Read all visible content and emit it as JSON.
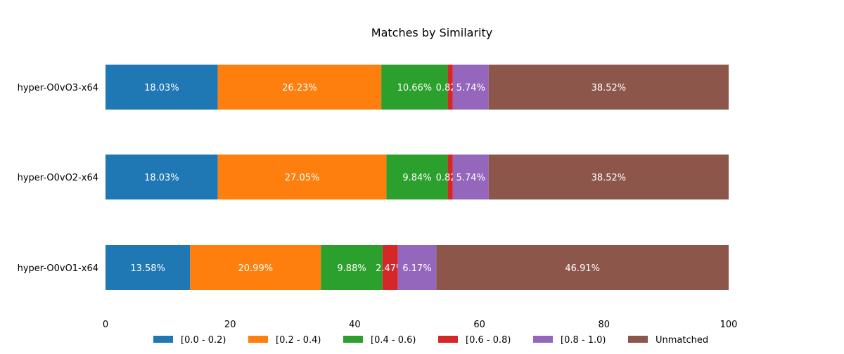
{
  "chart_data": {
    "type": "bar",
    "orientation": "horizontal",
    "stacked": true,
    "title": "Matches by Similarity",
    "xlabel": "",
    "ylabel": "",
    "xlim": [
      0,
      100
    ],
    "x_ticks": [
      0,
      20,
      40,
      60,
      80,
      100
    ],
    "grid": false,
    "legend_position": "bottom",
    "categories": [
      "hyper-O0vO1-x64",
      "hyper-O0vO2-x64",
      "hyper-O0vO3-x64"
    ],
    "series": [
      {
        "name": "[0.0 - 0.2)",
        "color": "#1f77b4",
        "values": [
          13.58,
          18.03,
          18.03
        ],
        "labels": [
          "13.58%",
          "18.03%",
          "18.03%"
        ]
      },
      {
        "name": "[0.2 - 0.4)",
        "color": "#ff7f0e",
        "values": [
          20.99,
          27.05,
          26.23
        ],
        "labels": [
          "20.99%",
          "27.05%",
          "26.23%"
        ]
      },
      {
        "name": "[0.4 - 0.6)",
        "color": "#2ca02c",
        "values": [
          9.88,
          9.84,
          10.66
        ],
        "labels": [
          "9.88%",
          "9.84%",
          "10.66%"
        ]
      },
      {
        "name": "[0.6 - 0.8)",
        "color": "#d62728",
        "values": [
          2.47,
          0.82,
          0.82
        ],
        "labels": [
          "2.47%",
          "0.82%",
          "0.82%"
        ]
      },
      {
        "name": "[0.8 - 1.0)",
        "color": "#9467bd",
        "values": [
          6.17,
          5.74,
          5.74
        ],
        "labels": [
          "6.17%",
          "5.74%",
          "5.74%"
        ]
      },
      {
        "name": "Unmatched",
        "color": "#8c564b",
        "values": [
          46.91,
          38.52,
          38.52
        ],
        "labels": [
          "46.91%",
          "38.52%",
          "38.52%"
        ]
      }
    ]
  }
}
